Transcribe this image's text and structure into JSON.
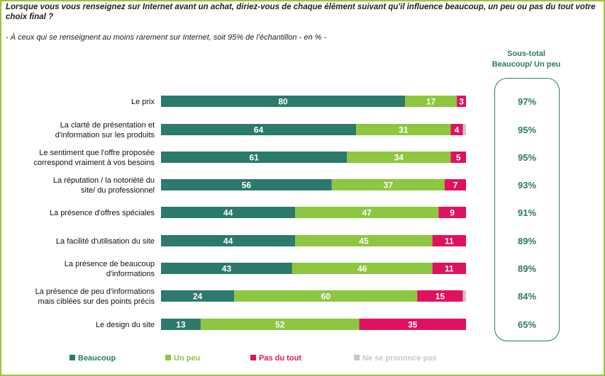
{
  "header": {
    "question": "Lorsque vous vous renseignez sur Internet avant un achat, diriez-vous de chaque élément suivant qu'il influence beaucoup, un peu ou pas du tout votre choix final ?",
    "base_note": "- À ceux qui se renseignent au moins rarement sur Internet, soit 95% de l'échantillon - en % -",
    "subtotal_header_line1": "Sous-total",
    "subtotal_header_line2": "Beaucoup/ Un peu"
  },
  "chart_data": {
    "type": "bar",
    "orientation": "horizontal",
    "stacked": true,
    "xlim": [
      0,
      100
    ],
    "grid": false,
    "legend_position": "bottom",
    "categories": [
      [
        "Le prix"
      ],
      [
        "La clarté de présentation et",
        "d'information sur les produits"
      ],
      [
        "Le sentiment que l'offre proposée",
        "correspond vraiment à vos besoins"
      ],
      [
        "La réputation / la notoriété du",
        "site/ du professionnel"
      ],
      [
        "La présence d'offres spéciales"
      ],
      [
        "La facilité d'utilisation du site"
      ],
      [
        "La présence de beaucoup",
        "d'informations"
      ],
      [
        "La présence de peu d'informations",
        "mais ciblées sur des points précis"
      ],
      [
        "Le design du site"
      ]
    ],
    "series": [
      {
        "name": "Beaucoup",
        "color": "#2b7a6b",
        "values": [
          80,
          64,
          61,
          56,
          44,
          44,
          43,
          24,
          13
        ],
        "labels": [
          "80",
          "64",
          "61",
          "56",
          "44",
          "44",
          "43",
          "24",
          "13"
        ]
      },
      {
        "name": "Un peu",
        "color": "#8dc63f",
        "values": [
          17,
          31,
          34,
          37,
          47,
          45,
          46,
          60,
          52
        ],
        "labels": [
          "17",
          "31",
          "34",
          "37",
          "47",
          "45",
          "46",
          "60",
          "52"
        ]
      },
      {
        "name": "Pas du tout",
        "color": "#e0115f",
        "values": [
          3,
          4,
          5,
          7,
          9,
          11,
          11,
          15,
          35
        ],
        "labels": [
          "3",
          "4",
          "5",
          "7",
          "9",
          "11",
          "11",
          "15",
          "35"
        ]
      },
      {
        "name": "Ne se prononce pas",
        "color": "#c8c8c8",
        "values": [
          0,
          1,
          0,
          0,
          0,
          0,
          0,
          1,
          0
        ],
        "labels": [
          "",
          "",
          "",
          "",
          "",
          "",
          "",
          "",
          ""
        ]
      }
    ],
    "subtotals": [
      "97%",
      "95%",
      "95%",
      "93%",
      "91%",
      "89%",
      "89%",
      "84%",
      "65%"
    ]
  },
  "colors": {
    "frame": "#9dc63b",
    "accent": "#2a7a6a"
  }
}
